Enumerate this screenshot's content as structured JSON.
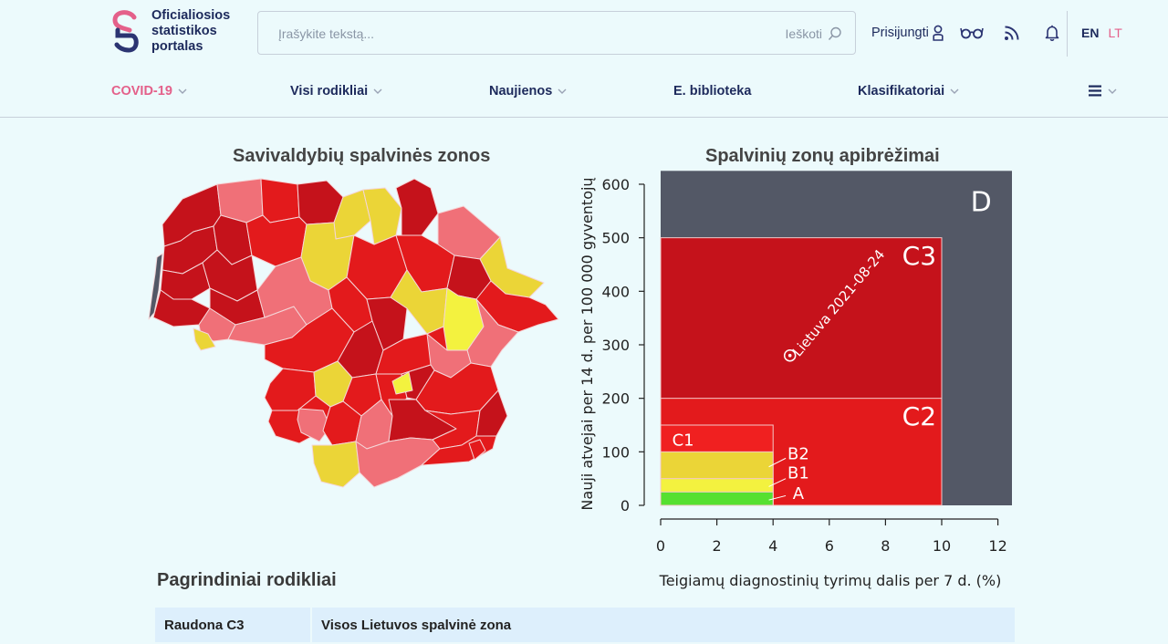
{
  "header": {
    "logo_lines": [
      "Oficialiosios",
      "statistikos",
      "portalas"
    ],
    "search_placeholder": "Įrašykite tekstą...",
    "search_button": "Ieškoti",
    "login": "Prisijungti",
    "lang_en": "EN",
    "lang_lt": "LT",
    "icons": [
      "user-icon",
      "glasses-icon",
      "rss-icon",
      "bell-icon",
      "search-icon"
    ]
  },
  "nav": {
    "items": [
      "COVID-19",
      "Visi rodikliai",
      "Naujienos",
      "E. biblioteka",
      "Klasifikatoriai"
    ],
    "accent": "#e4608a"
  },
  "map": {
    "title": "Savivaldybių spalvinės zonos",
    "zone_colors": {
      "dark_red": "#c5121b",
      "red": "#e31a1c",
      "pink": "#f07078",
      "yellow": "#ebd537",
      "bright_yellow": "#f3f23f"
    }
  },
  "chart": {
    "title": "Spalvinių zonų apibrėžimai",
    "xlabel": "Teigiamų diagnostinių tyrimų dalis per 7 d. (%)",
    "ylabel": "Nauji atvejai per 14 d. per 100 000 gyventojų",
    "zone_labels": {
      "D": "D",
      "C3": "C3",
      "C2": "C2",
      "C1": "C1",
      "B2": "B2",
      "B1": "B1",
      "A": "A"
    },
    "point_label": "Lietuva 2021-08-24"
  },
  "chart_data": {
    "type": "scatter",
    "xlim": [
      0,
      12
    ],
    "ylim": [
      0,
      600
    ],
    "x_ticks": [
      0,
      2,
      4,
      6,
      8,
      10,
      12
    ],
    "y_ticks": [
      0,
      100,
      200,
      300,
      400,
      500,
      600
    ],
    "zones": [
      {
        "name": "D",
        "x": [
          0,
          12.5
        ],
        "y": [
          0,
          625
        ],
        "color": "#535866"
      },
      {
        "name": "C3",
        "x": [
          0,
          10
        ],
        "y": [
          0,
          500
        ],
        "color": "#c5121b"
      },
      {
        "name": "C2",
        "x": [
          0,
          10
        ],
        "y": [
          0,
          200
        ],
        "color": "#e31a1c"
      },
      {
        "name": "C1",
        "x": [
          0,
          4
        ],
        "y": [
          0,
          150
        ],
        "color": "#f02020"
      },
      {
        "name": "B2",
        "x": [
          0,
          4
        ],
        "y": [
          0,
          100
        ],
        "color": "#ebd537"
      },
      {
        "name": "B1",
        "x": [
          0,
          4
        ],
        "y": [
          0,
          50
        ],
        "color": "#f3f23f"
      },
      {
        "name": "A",
        "x": [
          0,
          4
        ],
        "y": [
          0,
          25
        ],
        "color": "#55e030"
      }
    ],
    "points": [
      {
        "label": "Lietuva 2021-08-24",
        "x": 4.6,
        "y": 280
      }
    ]
  },
  "main_indicators": {
    "title": "Pagrindiniai rodikliai",
    "row": {
      "zone": "Raudona C3",
      "description": "Visos Lietuvos spalvinė zona"
    }
  }
}
